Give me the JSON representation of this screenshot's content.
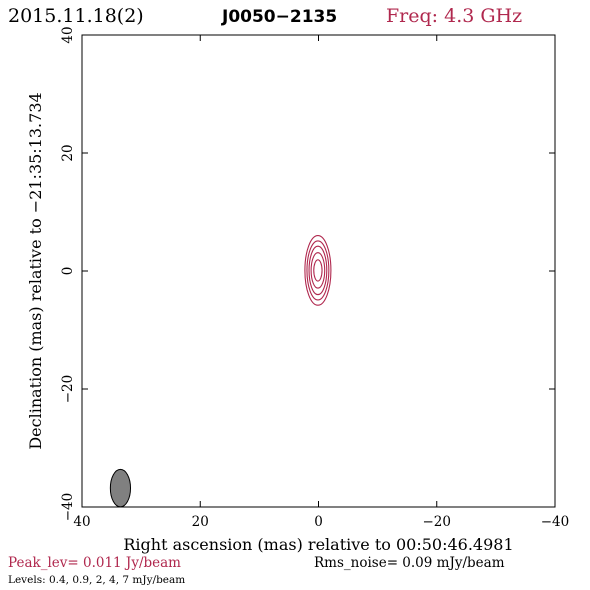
{
  "header": {
    "date": "2015.11.18(2)",
    "source": "J0050−2135",
    "freq": "Freq: 4.3 GHz"
  },
  "colors": {
    "accent": "#b0284e",
    "frame": "#000000",
    "beam_fill": "#808080"
  },
  "footer": {
    "peak": "Peak_lev=  0.011 Jy/beam",
    "rms": "Rms_noise= 0.09 mJy/beam",
    "levels": "Levels: 0.4,  0.9,    2,    4,    7 mJy/beam"
  },
  "chart_data": {
    "type": "contour",
    "xlabel": "Right ascension (mas) relative to 00:50:46.4981",
    "ylabel": "Declination (mas) relative to −21:35:13.734",
    "xlim": [
      40,
      -40
    ],
    "ylim": [
      -40,
      40
    ],
    "x_ticks": [
      40,
      20,
      0,
      -20,
      -40
    ],
    "x_tick_labels": [
      "40",
      "20",
      "0",
      "−20",
      "−40"
    ],
    "y_ticks": [
      -40,
      -20,
      0,
      20,
      40
    ],
    "y_tick_labels": [
      "−40",
      "−20",
      "0",
      "20",
      "40"
    ],
    "contour_levels_mJy_per_beam": [
      0.4,
      0.9,
      2,
      4,
      7
    ],
    "contours": [
      {
        "level": 0.4,
        "cx": 0.1,
        "cy": 0.1,
        "rx": 2.2,
        "ry": 5.9
      },
      {
        "level": 0.9,
        "cx": 0.1,
        "cy": 0.1,
        "rx": 1.85,
        "ry": 5.0
      },
      {
        "level": 2,
        "cx": 0.1,
        "cy": 0.1,
        "rx": 1.5,
        "ry": 4.1
      },
      {
        "level": 4,
        "cx": 0.1,
        "cy": 0.1,
        "rx": 1.15,
        "ry": 3.0
      },
      {
        "level": 7,
        "cx": 0.1,
        "cy": 0.1,
        "rx": 0.7,
        "ry": 1.8
      }
    ],
    "beam": {
      "cx": 33.5,
      "cy": -36.8,
      "major": 5.2,
      "minor": 2.2,
      "pa_deg": 0
    }
  }
}
